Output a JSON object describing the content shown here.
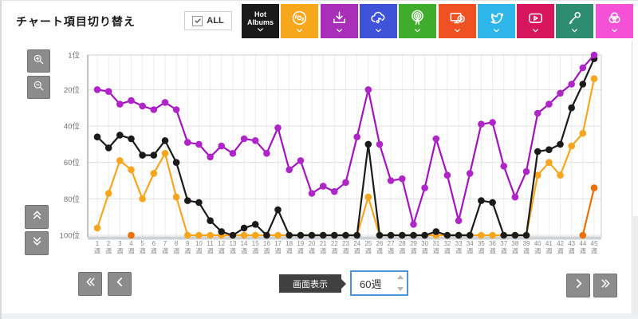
{
  "header": {
    "title": "チャート項目切り替え",
    "all_checkbox": {
      "label": "ALL",
      "checked": true,
      "icon": "check-icon"
    }
  },
  "chart_tabs": [
    {
      "name": "hot-albums",
      "label": "Hot Albums",
      "color": "#1a1a1a",
      "icon": null,
      "chevron_icon": "chevron-down-icon"
    },
    {
      "name": "vinyl-disc",
      "label": "",
      "color": "#f7a71b",
      "icon": "vinyl-disc-icon",
      "chevron_icon": "chevron-down-icon"
    },
    {
      "name": "download",
      "label": "",
      "color": "#a92eb8",
      "icon": "download-icon",
      "chevron_icon": "chevron-down-icon"
    },
    {
      "name": "cloud-music",
      "label": "",
      "color": "#3e53d8",
      "icon": "cloud-music-icon",
      "chevron_icon": "chevron-down-icon"
    },
    {
      "name": "broadcast",
      "label": "",
      "color": "#3fad2c",
      "icon": "broadcast-icon",
      "chevron_icon": "chevron-down-icon"
    },
    {
      "name": "tv-disc",
      "label": "",
      "color": "#f05123",
      "icon": "tv-disc-icon",
      "chevron_icon": "chevron-down-icon"
    },
    {
      "name": "twitter",
      "label": "",
      "color": "#2eb6ea",
      "icon": "twitter-icon",
      "chevron_icon": "chevron-down-icon"
    },
    {
      "name": "youtube",
      "label": "",
      "color": "#d6155c",
      "icon": "youtube-icon",
      "chevron_icon": "chevron-down-icon"
    },
    {
      "name": "microphone",
      "label": "",
      "color": "#2e8c70",
      "icon": "microphone-icon",
      "chevron_icon": "chevron-down-icon"
    },
    {
      "name": "venn",
      "label": "",
      "color": "#f551d6",
      "icon": "venn-circles-icon",
      "chevron_icon": "chevron-down-icon"
    }
  ],
  "side_controls": {
    "zoom_in": {
      "icon": "magnifier-plus-icon"
    },
    "zoom_out": {
      "icon": "magnifier-minus-icon"
    },
    "scroll_up": {
      "icon": "chevrons-up-icon"
    },
    "scroll_down": {
      "icon": "chevrons-down-icon"
    }
  },
  "pager": {
    "first": {
      "icon": "chevrons-left-icon"
    },
    "prev": {
      "icon": "chevron-left-icon"
    },
    "next": {
      "icon": "chevron-right-icon"
    },
    "last": {
      "icon": "chevrons-right-icon"
    }
  },
  "display_control": {
    "label": "画面表示",
    "value": "60週"
  },
  "chart_data": {
    "type": "line",
    "y_axis": {
      "inverted": true,
      "best_rank": 1,
      "worst_rank": 100
    },
    "y_ticks": [
      {
        "rank": 1,
        "label": "1位"
      },
      {
        "rank": 20,
        "label": "20位"
      },
      {
        "rank": 40,
        "label": "40位"
      },
      {
        "rank": 60,
        "label": "60位"
      },
      {
        "rank": 80,
        "label": "80位"
      },
      {
        "rank": 100,
        "label": "100位"
      }
    ],
    "x_unit": "週",
    "weeks": [
      1,
      2,
      3,
      4,
      5,
      6,
      7,
      8,
      9,
      10,
      11,
      12,
      13,
      14,
      15,
      16,
      17,
      18,
      19,
      20,
      21,
      22,
      23,
      24,
      25,
      26,
      27,
      28,
      29,
      30,
      31,
      32,
      33,
      34,
      35,
      36,
      37,
      38,
      39,
      40,
      41,
      42,
      43,
      44,
      45
    ],
    "series": [
      {
        "name": "orange-series",
        "color": "#f7a51d",
        "marker_color": "#f7a51d",
        "values": [
          96,
          77,
          59,
          64,
          80,
          66,
          55,
          79,
          100,
          100,
          100,
          100,
          100,
          100,
          100,
          100,
          100,
          100,
          100,
          100,
          100,
          100,
          100,
          100,
          79,
          100,
          100,
          100,
          100,
          100,
          100,
          100,
          100,
          100,
          100,
          100,
          100,
          100,
          100,
          67,
          60,
          67,
          51,
          44,
          14
        ]
      },
      {
        "name": "black-series",
        "color": "#1b1b1b",
        "marker_color": "#1b1b1b",
        "values": [
          46,
          52,
          45,
          47,
          56,
          56,
          48,
          60,
          81,
          82,
          92,
          98,
          100,
          96,
          94,
          100,
          86,
          100,
          100,
          100,
          100,
          100,
          100,
          100,
          50,
          100,
          100,
          100,
          100,
          100,
          98,
          100,
          100,
          100,
          81,
          82,
          100,
          100,
          100,
          54,
          53,
          50,
          30,
          17,
          3
        ]
      },
      {
        "name": "dark-orange-series",
        "color": "#ec6f03",
        "marker_color": "#ec6f03",
        "values": [
          null,
          null,
          null,
          100,
          null,
          null,
          null,
          null,
          null,
          null,
          null,
          null,
          null,
          null,
          null,
          null,
          null,
          null,
          null,
          null,
          null,
          null,
          null,
          null,
          null,
          null,
          null,
          null,
          null,
          null,
          null,
          null,
          null,
          null,
          null,
          null,
          null,
          null,
          null,
          null,
          null,
          null,
          null,
          100,
          74
        ]
      },
      {
        "name": "purple-series",
        "color": "#a414be",
        "marker_color": "#af25c8",
        "values": [
          20,
          21,
          28,
          26,
          29,
          31,
          27,
          31,
          49,
          50,
          57,
          51,
          55,
          47,
          48,
          55,
          41,
          64,
          59,
          77,
          73,
          76,
          71,
          46,
          20,
          50,
          70,
          69,
          94,
          74,
          47,
          67,
          92,
          66,
          39,
          38,
          62,
          79,
          65,
          33,
          28,
          22,
          17,
          8,
          1
        ]
      }
    ]
  }
}
